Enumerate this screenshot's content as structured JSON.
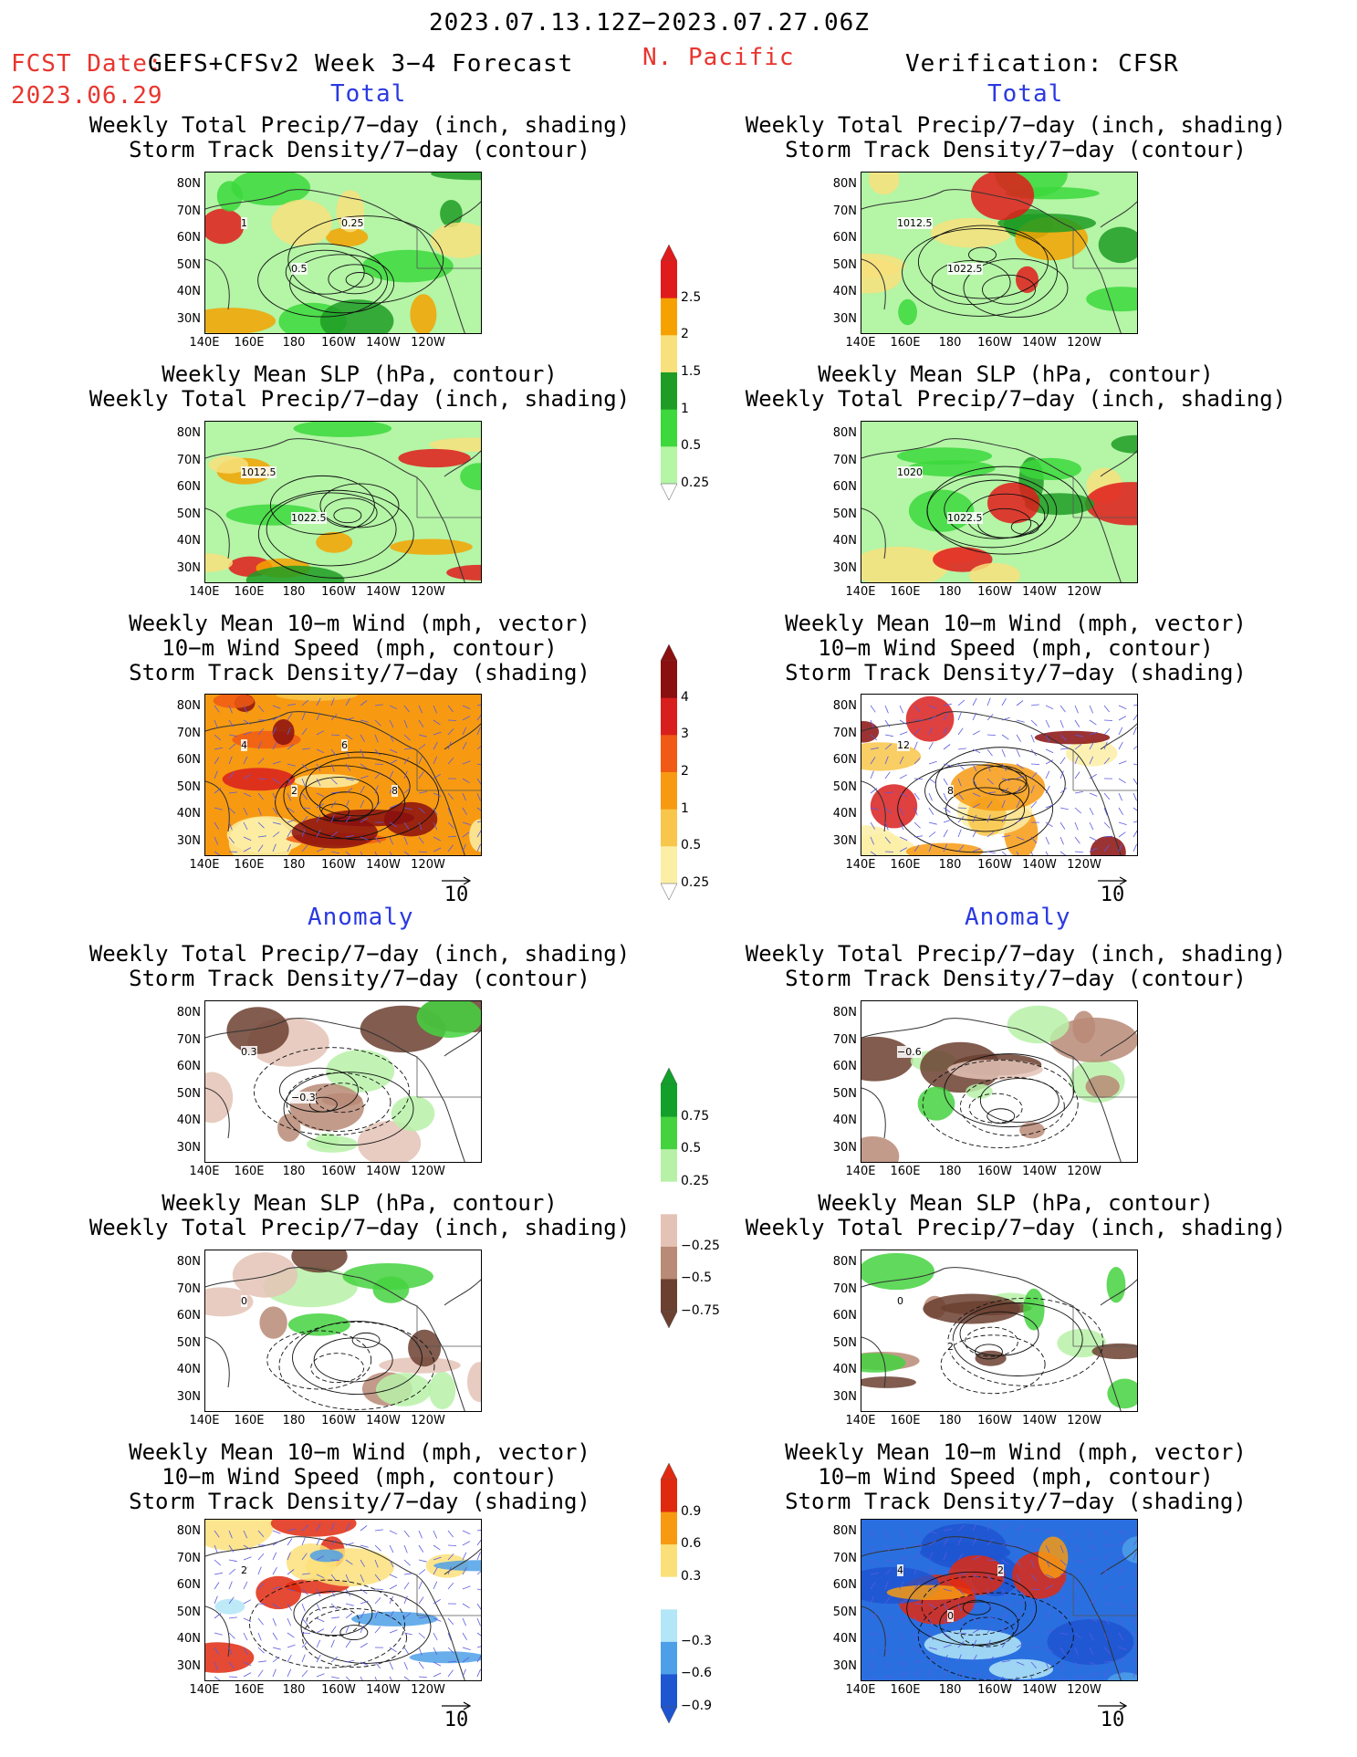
{
  "header": {
    "period": "2023.07.13.12Z−2023.07.27.06Z",
    "fcst_label": "FCST Date:",
    "model": "GEFS+CFSv2 Week 3−4 Forecast",
    "fcst_date": "2023.06.29",
    "region": "N. Pacific",
    "verification": "Verification: CFSR"
  },
  "section_labels": {
    "total": "Total",
    "anomaly": "Anomaly"
  },
  "titles": {
    "precip_storm": [
      "Weekly Total Precip/7−day (inch, shading)",
      "Storm Track Density/7−day (contour)"
    ],
    "slp_precip": [
      "Weekly Mean SLP (hPa, contour)",
      "Weekly Total Precip/7−day (inch, shading)"
    ],
    "wind": [
      "Weekly Mean 10−m Wind (mph, vector)",
      "10−m Wind Speed (mph, contour)",
      "Storm Track Density/7−day (shading)"
    ]
  },
  "axes": {
    "lat": [
      "80N",
      "70N",
      "60N",
      "50N",
      "40N",
      "30N"
    ],
    "lon": [
      "140E",
      "160E",
      "180",
      "160W",
      "140W",
      "120W"
    ]
  },
  "vector_reference": "10",
  "colorbars": {
    "precip_total": {
      "labels": [
        "2.5",
        "2",
        "1.5",
        "1",
        "0.5",
        "0.25"
      ],
      "colors": [
        "#e01b1b",
        "#f5a200",
        "#f8e07c",
        "#1f9c25",
        "#3cd83c",
        "#b4f5a6"
      ]
    },
    "storm_total": {
      "labels": [
        "4",
        "3",
        "2",
        "1",
        "0.5",
        "0.25"
      ],
      "colors": [
        "#8a0f0f",
        "#d91e1e",
        "#f05a14",
        "#f79a12",
        "#f8c64a",
        "#fbefa6"
      ]
    },
    "precip_anom": {
      "labels": [
        "0.75",
        "0.5",
        "0.25",
        "−0.25",
        "−0.5",
        "−0.75"
      ],
      "colors": [
        "#12a02a",
        "#45d23f",
        "#b7f1a8",
        "#ffffff",
        "#e4c3b6",
        "#b98a76",
        "#6b4030"
      ]
    },
    "storm_anom": {
      "labels": [
        "0.9",
        "0.6",
        "0.3",
        "−0.3",
        "−0.6",
        "−0.9"
      ],
      "colors": [
        "#e02a10",
        "#f79a12",
        "#fbe07a",
        "#ffffff",
        "#b3e6f7",
        "#4da0e8",
        "#1e55d0"
      ]
    }
  },
  "contour_labels": {
    "p1": [
      "1",
      "0.5",
      "0.25"
    ],
    "p2": [
      "1012.5",
      "1022.5"
    ],
    "p3": [
      "4",
      "2",
      "6",
      "8"
    ],
    "p4": [
      "1020",
      "1022.5"
    ],
    "p5": [
      "12",
      "8"
    ],
    "p6": [
      "0.3",
      "−0.3"
    ],
    "p7": [
      "−0.6"
    ],
    "p8": [
      "0"
    ],
    "p9": [
      "0",
      "2"
    ],
    "p10": [
      "2"
    ],
    "p11": [
      "4",
      "0",
      "2"
    ]
  }
}
